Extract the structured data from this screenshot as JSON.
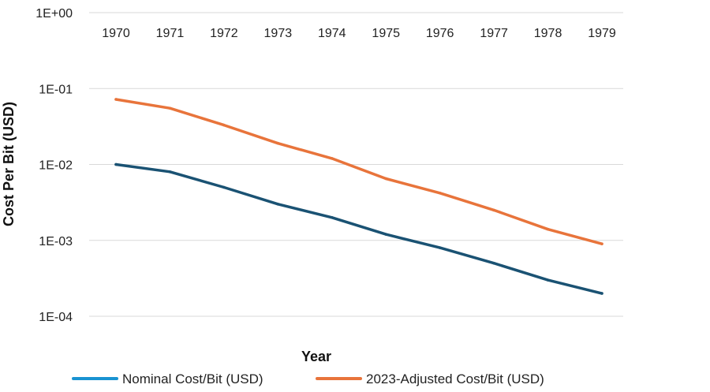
{
  "chart_data": {
    "type": "line",
    "title": "",
    "xlabel": "Year",
    "ylabel": "Cost Per Bit (USD)",
    "yscale": "log",
    "ylim": [
      0.0001,
      1
    ],
    "y_ticks": [
      1,
      0.1,
      0.01,
      0.001,
      0.0001
    ],
    "y_tick_labels": [
      "1E+00",
      "1E-01",
      "1E-02",
      "1E-03",
      "1E-04"
    ],
    "x_position": "top",
    "grid": "horizontal",
    "legend": "bottom",
    "categories": [
      "1970",
      "1971",
      "1972",
      "1973",
      "1974",
      "1975",
      "1976",
      "1977",
      "1978",
      "1979"
    ],
    "series": [
      {
        "name": "Nominal Cost/Bit (USD)",
        "values": [
          0.01,
          0.008,
          0.005,
          0.003,
          0.002,
          0.0012,
          0.0008,
          0.0005,
          0.0003,
          0.0002
        ],
        "line_color": "#1a5273",
        "legend_color": "#1993d1"
      },
      {
        "name": "2023-Adjusted Cost/Bit (USD)",
        "values": [
          0.072,
          0.055,
          0.033,
          0.019,
          0.012,
          0.0065,
          0.0042,
          0.0025,
          0.0014,
          0.0009
        ],
        "line_color": "#e8743b",
        "legend_color": "#e8743b"
      }
    ]
  },
  "colors": {
    "grid": "#d9d9d9",
    "text": "#222222"
  }
}
